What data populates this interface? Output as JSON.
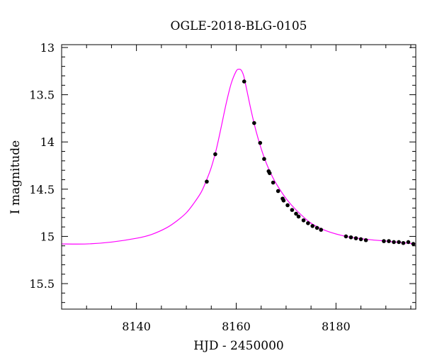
{
  "chart_data": {
    "type": "scatter",
    "title": "OGLE-2018-BLG-0105",
    "xlabel": "HJD - 2450000",
    "ylabel": "I magnitude",
    "xlim": [
      8125,
      8196
    ],
    "ylim": [
      15.77,
      12.97
    ],
    "y_inverted": true,
    "grid": false,
    "xticks": [
      "8140",
      "8160",
      "8180"
    ],
    "yticks": [
      "13",
      "13.5",
      "14",
      "14.5",
      "15",
      "15.5"
    ],
    "series": [
      {
        "kind": "points",
        "color": "#000000",
        "points": [
          [
            8154.1,
            14.42
          ],
          [
            8155.8,
            14.13
          ],
          [
            8161.6,
            13.36
          ],
          [
            8163.6,
            13.8
          ],
          [
            8164.8,
            14.01
          ],
          [
            8165.6,
            14.18
          ],
          [
            8166.5,
            14.31
          ],
          [
            8166.7,
            14.33
          ],
          [
            8167.4,
            14.43
          ],
          [
            8168.4,
            14.52
          ],
          [
            8169.3,
            14.6
          ],
          [
            8169.5,
            14.62
          ],
          [
            8170.3,
            14.67
          ],
          [
            8171.2,
            14.72
          ],
          [
            8172.0,
            14.76
          ],
          [
            8172.5,
            14.79
          ],
          [
            8173.5,
            14.83
          ],
          [
            8174.4,
            14.86
          ],
          [
            8175.3,
            14.89
          ],
          [
            8176.2,
            14.91
          ],
          [
            8177.0,
            14.93
          ],
          [
            8182.0,
            15.0
          ],
          [
            8183.0,
            15.01
          ],
          [
            8184.0,
            15.02
          ],
          [
            8185.0,
            15.03
          ],
          [
            8186.0,
            15.04
          ],
          [
            8189.6,
            15.05
          ],
          [
            8190.6,
            15.05
          ],
          [
            8191.6,
            15.06
          ],
          [
            8192.6,
            15.06
          ],
          [
            8193.5,
            15.07
          ],
          [
            8194.5,
            15.06
          ],
          [
            8195.5,
            15.08
          ]
        ]
      },
      {
        "kind": "model-curve",
        "color": "#ff00ff",
        "x": [
          8125,
          8130,
          8135,
          8140,
          8143,
          8146,
          8148,
          8150,
          8151.5,
          8153,
          8154,
          8155,
          8156,
          8157,
          8158,
          8159,
          8160,
          8160.5,
          8161,
          8161.5,
          8162,
          8163,
          8164,
          8165,
          8166,
          8167,
          8168,
          8170,
          8172,
          8175,
          8178,
          8182,
          8186,
          8190,
          8196
        ],
        "y": [
          15.08,
          15.08,
          15.06,
          15.02,
          14.98,
          14.91,
          14.84,
          14.75,
          14.65,
          14.53,
          14.41,
          14.27,
          14.08,
          13.84,
          13.59,
          13.38,
          13.25,
          13.23,
          13.24,
          13.3,
          13.42,
          13.67,
          13.89,
          14.07,
          14.22,
          14.34,
          14.44,
          14.6,
          14.72,
          14.86,
          14.94,
          15.0,
          15.03,
          15.05,
          15.08
        ]
      }
    ]
  }
}
